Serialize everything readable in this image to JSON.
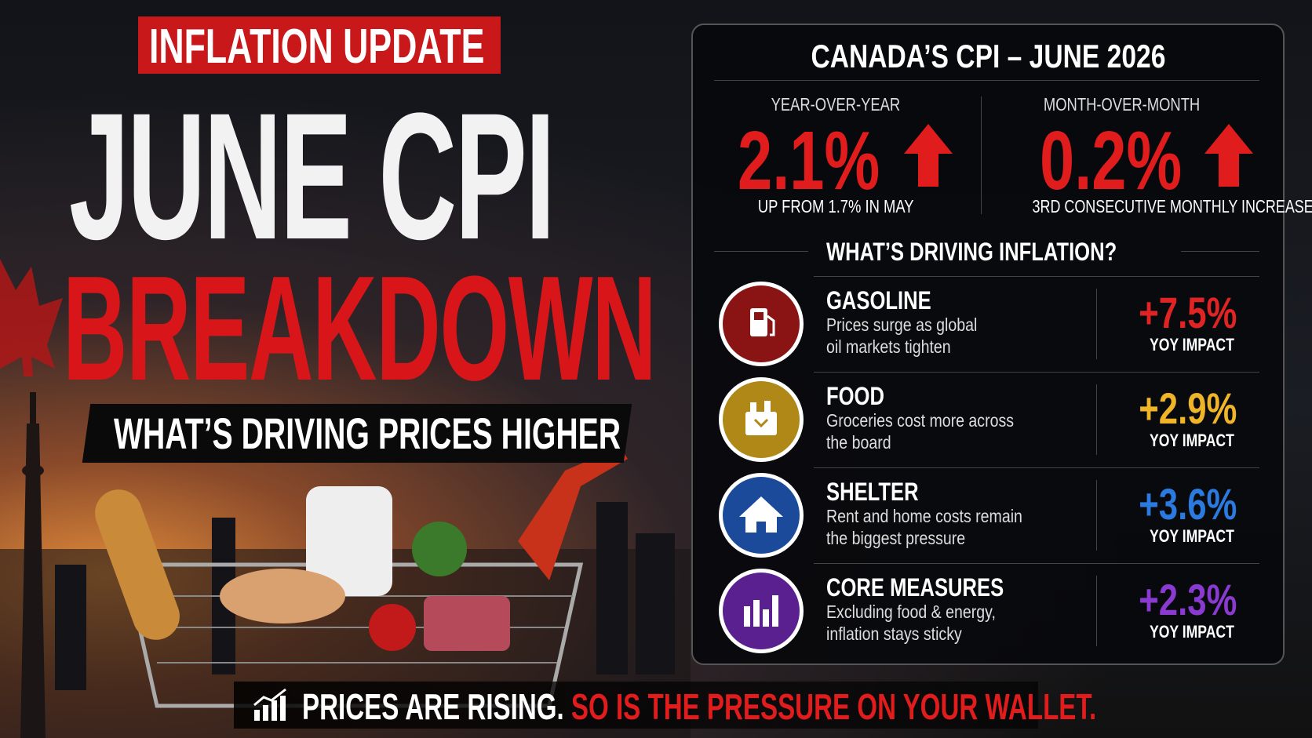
{
  "header": {
    "tag": "INFLATION UPDATE",
    "title_line1": "JUNE CPI",
    "title_line2": "BREAKDOWN",
    "subtitle": "WHAT’S DRIVING PRICES HIGHER"
  },
  "panel": {
    "title": "CANADA’S CPI – JUNE 2026",
    "stats": [
      {
        "label": "YEAR-OVER-YEAR",
        "value": "2.1%",
        "note": "UP FROM 1.7% IN MAY"
      },
      {
        "label": "MONTH-OVER-MONTH",
        "value": "0.2%",
        "note": "3RD CONSECUTIVE MONTHLY INCREASE"
      }
    ],
    "drivers_title": "WHAT’S DRIVING INFLATION?",
    "drivers": [
      {
        "name": "GASOLINE",
        "desc": [
          "Prices surge as global",
          "oil markets tighten"
        ],
        "value": "+7.5%",
        "unit": "YOY IMPACT"
      },
      {
        "name": "FOOD",
        "desc": [
          "Groceries cost more across",
          "the board"
        ],
        "value": "+2.9%",
        "unit": "YOY IMPACT"
      },
      {
        "name": "SHELTER",
        "desc": [
          "Rent and home costs remain",
          "the biggest pressure"
        ],
        "value": "+3.6%",
        "unit": "YOY IMPACT"
      },
      {
        "name": "CORE MEASURES",
        "desc": [
          "Excluding food & energy,",
          "inflation stays sticky"
        ],
        "value": "+2.3%",
        "unit": "YOY IMPACT"
      }
    ]
  },
  "footer": {
    "lead": "PRICES ARE RISING.",
    "rest": "SO IS THE PRESSURE ON YOUR WALLET."
  }
}
